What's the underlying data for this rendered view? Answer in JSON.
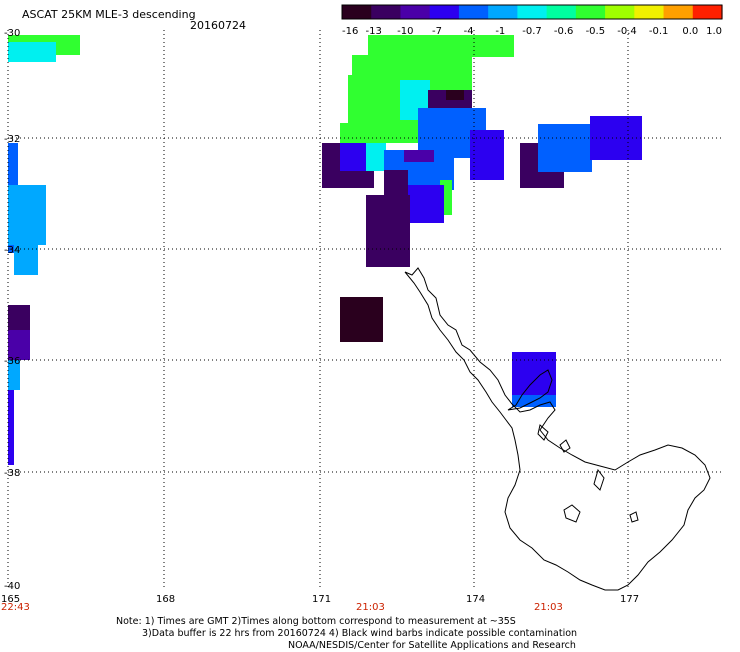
{
  "title": "ASCAT 25KM MLE-3 descending",
  "date": "20160724",
  "colorbar": {
    "labels": [
      "-16",
      "-13",
      "-10",
      "-7",
      "-4",
      "-1",
      "-0.7",
      "-0.6",
      "-0.5",
      "-0.4",
      "-0.1",
      "0.0",
      "1.0"
    ],
    "colors": [
      "#2a001e",
      "#3a0060",
      "#4a00a8",
      "#2c00f0",
      "#0060ff",
      "#00a8ff",
      "#00f0f0",
      "#00ffa0",
      "#30ff30",
      "#a0ff00",
      "#f0f000",
      "#ffa000",
      "#ff2000"
    ]
  },
  "lat_labels": [
    "-30",
    "-32",
    "-34",
    "-36",
    "-38",
    "-40"
  ],
  "lon_labels": [
    "165",
    "168",
    "171",
    "174",
    "177"
  ],
  "time_labels": [
    "22:43",
    "21:03",
    "21:03"
  ],
  "notes": [
    "Note: 1) Times are GMT 2)Times along bottom correspond to measurement at ~35S",
    "3)Data buffer is 22 hrs from 20160724 4) Black wind barbs indicate possible contamination",
    "NOAA/NESDIS/Center for Satellite Applications and Research"
  ]
}
